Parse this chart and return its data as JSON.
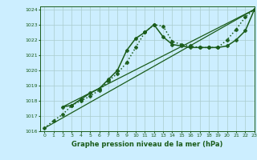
{
  "title": "Graphe pression niveau de la mer (hPa)",
  "background_color": "#cceeff",
  "grid_color": "#aacccc",
  "line_color": "#1a5c1a",
  "xlim": [
    -0.5,
    23
  ],
  "ylim": [
    1016,
    1024.2
  ],
  "yticks": [
    1016,
    1017,
    1018,
    1019,
    1020,
    1021,
    1022,
    1023,
    1024
  ],
  "xticks": [
    0,
    1,
    2,
    3,
    4,
    5,
    6,
    7,
    8,
    9,
    10,
    11,
    12,
    13,
    14,
    15,
    16,
    17,
    18,
    19,
    20,
    21,
    22,
    23
  ],
  "series": [
    {
      "x": [
        0,
        1,
        2,
        3,
        4,
        5,
        6,
        7,
        8,
        9,
        10,
        11,
        12,
        13,
        14,
        15,
        16,
        17,
        18,
        19,
        20,
        21,
        22,
        23
      ],
      "y": [
        1016.2,
        1016.7,
        1017.1,
        1017.7,
        1018.0,
        1018.3,
        1018.7,
        1019.3,
        1019.8,
        1020.5,
        1021.5,
        1022.5,
        1023.0,
        1022.9,
        1021.9,
        1021.7,
        1021.6,
        1021.5,
        1021.5,
        1021.5,
        1022.0,
        1022.7,
        1023.5,
        1024.0
      ],
      "marker": "P",
      "markersize": 3.0,
      "linestyle": ":",
      "linewidth": 1.1
    },
    {
      "x": [
        2,
        3,
        4,
        5,
        6,
        7,
        8,
        9,
        10,
        11,
        12,
        13,
        14,
        15,
        16,
        17,
        18,
        19,
        20,
        21,
        22,
        23
      ],
      "y": [
        1017.6,
        1017.7,
        1018.1,
        1018.5,
        1018.8,
        1019.4,
        1020.0,
        1021.3,
        1022.1,
        1022.5,
        1023.0,
        1022.2,
        1021.7,
        1021.6,
        1021.5,
        1021.5,
        1021.5,
        1021.5,
        1021.6,
        1022.0,
        1022.6,
        1024.0
      ],
      "marker": "P",
      "markersize": 3.0,
      "linestyle": "-",
      "linewidth": 1.1
    },
    {
      "x": [
        0,
        23
      ],
      "y": [
        1016.2,
        1024.0
      ],
      "marker": null,
      "markersize": 0,
      "linestyle": "-",
      "linewidth": 0.9
    },
    {
      "x": [
        2,
        23
      ],
      "y": [
        1017.6,
        1024.0
      ],
      "marker": null,
      "markersize": 0,
      "linestyle": "-",
      "linewidth": 0.9
    }
  ]
}
